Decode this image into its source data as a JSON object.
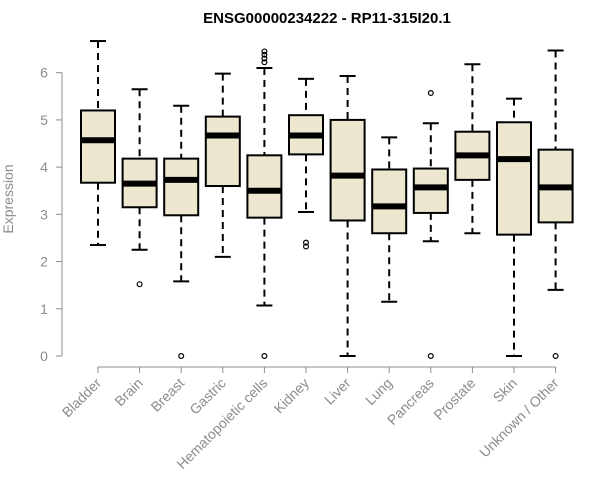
{
  "chart_data": {
    "type": "boxplot",
    "title": "ENSG00000234222 - RP11-315I20.1",
    "xlabel": "",
    "ylabel": "Expression",
    "ylim": [
      0,
      6.65
    ],
    "yticks": [
      0,
      1,
      2,
      3,
      4,
      5,
      6
    ],
    "box_fill": "#ede7d0",
    "box_stroke": "#000000",
    "axis_color": "#8c8c8c",
    "grid": false,
    "legend": "none",
    "categories": [
      "Bladder",
      "Brain",
      "Breast",
      "Gastric",
      "Hematopoietic cells",
      "Kidney",
      "Liver",
      "Lung",
      "Pancreas",
      "Prostate",
      "Skin",
      "Unknown / Other"
    ],
    "series": [
      {
        "category": "Bladder",
        "whisker_low": 2.35,
        "q1": 3.67,
        "median": 4.57,
        "q3": 5.2,
        "whisker_high": 6.67,
        "outliers": []
      },
      {
        "category": "Brain",
        "whisker_low": 2.25,
        "q1": 3.15,
        "median": 3.65,
        "q3": 4.18,
        "whisker_high": 5.65,
        "outliers": [
          1.52
        ]
      },
      {
        "category": "Breast",
        "whisker_low": 1.58,
        "q1": 2.98,
        "median": 3.73,
        "q3": 4.18,
        "whisker_high": 5.3,
        "outliers": [
          0.0
        ]
      },
      {
        "category": "Gastric",
        "whisker_low": 2.1,
        "q1": 3.6,
        "median": 4.67,
        "q3": 5.07,
        "whisker_high": 5.98,
        "outliers": []
      },
      {
        "category": "Hematopoietic cells",
        "whisker_low": 1.07,
        "q1": 2.93,
        "median": 3.5,
        "q3": 4.25,
        "whisker_high": 6.1,
        "outliers": [
          0.0,
          6.22,
          6.3,
          6.38,
          6.45
        ]
      },
      {
        "category": "Kidney",
        "whisker_low": 3.05,
        "q1": 4.27,
        "median": 4.67,
        "q3": 5.1,
        "whisker_high": 5.87,
        "outliers": [
          2.32,
          2.4
        ]
      },
      {
        "category": "Liver",
        "whisker_low": 0.0,
        "q1": 2.87,
        "median": 3.82,
        "q3": 5.0,
        "whisker_high": 5.93,
        "outliers": []
      },
      {
        "category": "Lung",
        "whisker_low": 1.15,
        "q1": 2.6,
        "median": 3.17,
        "q3": 3.95,
        "whisker_high": 4.63,
        "outliers": []
      },
      {
        "category": "Pancreas",
        "whisker_low": 2.43,
        "q1": 3.03,
        "median": 3.57,
        "q3": 3.97,
        "whisker_high": 4.93,
        "outliers": [
          0.0,
          5.57
        ]
      },
      {
        "category": "Prostate",
        "whisker_low": 2.6,
        "q1": 3.73,
        "median": 4.25,
        "q3": 4.75,
        "whisker_high": 6.18,
        "outliers": []
      },
      {
        "category": "Skin",
        "whisker_low": 0.0,
        "q1": 2.57,
        "median": 4.17,
        "q3": 4.95,
        "whisker_high": 5.45,
        "outliers": []
      },
      {
        "category": "Unknown / Other",
        "whisker_low": 1.4,
        "q1": 2.83,
        "median": 3.57,
        "q3": 4.37,
        "whisker_high": 6.47,
        "outliers": [
          0.0
        ]
      }
    ]
  }
}
